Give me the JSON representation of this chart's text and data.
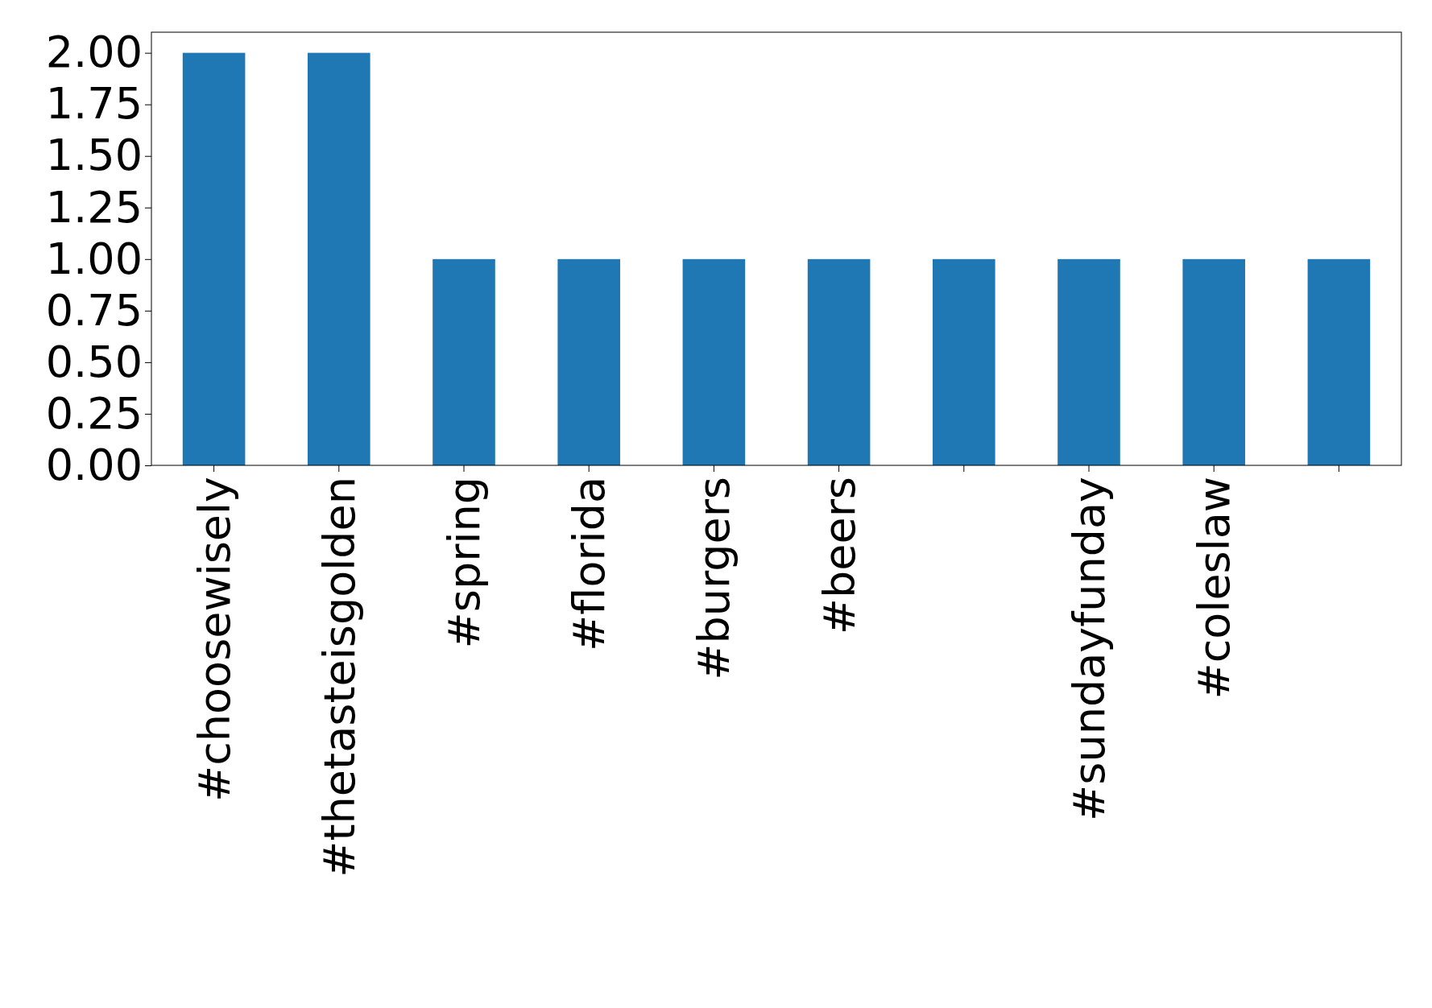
{
  "chart_data": {
    "type": "bar",
    "categories": [
      "#choosewisely",
      "#thetasteisgolden",
      "#spring",
      "#florida",
      "#burgers",
      "#beers",
      null,
      "#sundayfunday",
      "#coleslaw",
      null
    ],
    "values": [
      2,
      2,
      1,
      1,
      1,
      1,
      1,
      1,
      1,
      1
    ],
    "color": "#1f77b4",
    "ylim": [
      0,
      2.1
    ],
    "yticks": [
      {
        "value": 0,
        "label": "0.00"
      },
      {
        "value": 0.25,
        "label": "0.25"
      },
      {
        "value": 0.5,
        "label": "0.50"
      },
      {
        "value": 0.75,
        "label": "0.75"
      },
      {
        "value": 1,
        "label": "1.00"
      },
      {
        "value": 1.25,
        "label": "1.25"
      },
      {
        "value": 1.5,
        "label": "1.50"
      },
      {
        "value": 1.75,
        "label": "1.75"
      },
      {
        "value": 2,
        "label": "2.00"
      }
    ],
    "grid": false
  }
}
